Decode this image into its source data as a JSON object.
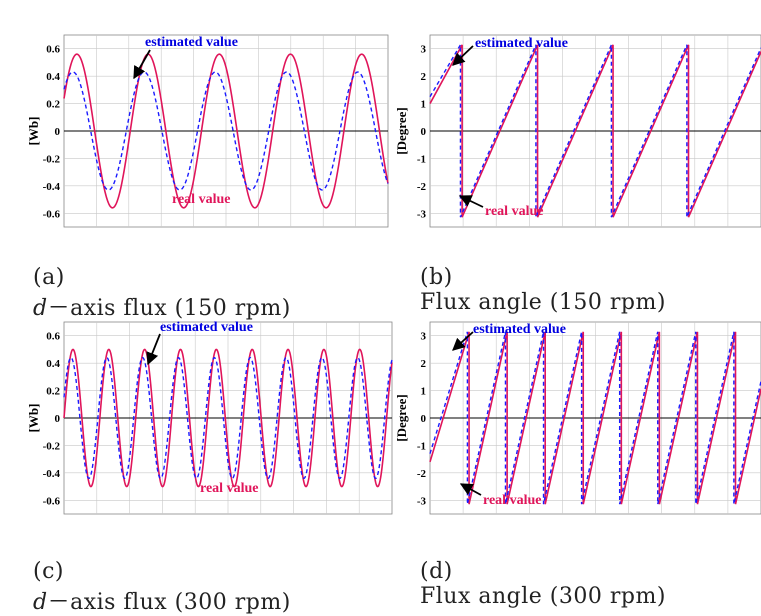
{
  "captions": [
    {
      "label": "(a)",
      "italic": "d",
      "text": "－axis flux (150 rpm)"
    },
    {
      "label": "(b)",
      "italic": "",
      "text": "Flux angle (150 rpm)"
    },
    {
      "label": "(c)",
      "italic": "d",
      "text": "－axis flux (300 rpm)"
    },
    {
      "label": "(d)",
      "italic": "",
      "text": "Flux angle (300 rpm)"
    }
  ],
  "colors": {
    "real": "#e0155a",
    "estimated": "#1a1aff",
    "grid": "#c8c8c8",
    "zero_line": "#000000"
  },
  "chart_data": [
    {
      "type": "line",
      "ylabel": "[Wb]",
      "ylim": [
        -0.7,
        0.7
      ],
      "yticks": [
        "0.6",
        "0.4",
        "0.2",
        "0",
        "-0.2",
        "-0.4",
        "-0.6"
      ],
      "ytick_values": [
        0.6,
        0.4,
        0.2,
        0,
        -0.2,
        -0.4,
        -0.6
      ],
      "xlim": [
        0,
        1
      ],
      "grid": true,
      "series": [
        {
          "style": "solid",
          "amplitude": 0.56,
          "cycles": 4.55,
          "phase_deg": 25,
          "waveform": "sine"
        },
        {
          "style": "dashed",
          "amplitude": 0.43,
          "cycles": 4.55,
          "phase_deg": 45,
          "waveform": "sine"
        }
      ],
      "annotations": {
        "estimated": "estimated value",
        "real": "real value"
      }
    },
    {
      "type": "line",
      "ylabel": "[Degree]",
      "ylim": [
        -3.5,
        3.5
      ],
      "yticks": [
        "3",
        "2",
        "1",
        "0",
        "-1",
        "-2",
        "-3"
      ],
      "ytick_values": [
        3,
        2,
        1,
        0,
        -1,
        -2,
        -3
      ],
      "xlim": [
        0,
        1
      ],
      "grid": true,
      "series": [
        {
          "style": "solid",
          "start": 1.0,
          "period": 0.228,
          "first_wrap": 0.097,
          "waveform": "sawtooth"
        },
        {
          "style": "dashed",
          "start": 1.25,
          "period": 0.228,
          "first_wrap": 0.092,
          "waveform": "sawtooth"
        }
      ],
      "annotations": {
        "estimated": "estimated value",
        "real": "real value"
      }
    },
    {
      "type": "line",
      "ylabel": "[Wb]",
      "ylim": [
        -0.7,
        0.7
      ],
      "yticks": [
        "0.6",
        "0.4",
        "0.2",
        "0",
        "-0.2",
        "-0.4",
        "-0.6"
      ],
      "ytick_values": [
        0.6,
        0.4,
        0.2,
        0,
        -0.2,
        -0.4,
        -0.6
      ],
      "xlim": [
        0,
        1
      ],
      "grid": true,
      "series": [
        {
          "style": "solid",
          "amplitude": 0.5,
          "cycles": 9.15,
          "phase_deg": 0,
          "waveform": "sine"
        },
        {
          "style": "dashed",
          "amplitude": 0.44,
          "cycles": 9.15,
          "phase_deg": 20,
          "waveform": "sine"
        }
      ],
      "annotations": {
        "estimated": "estimated value",
        "real": "real value"
      }
    },
    {
      "type": "line",
      "ylabel": "[Degree]",
      "ylim": [
        -3.5,
        3.5
      ],
      "yticks": [
        "3",
        "2",
        "1",
        "0",
        "-1",
        "-2",
        "-3"
      ],
      "ytick_values": [
        3,
        2,
        1,
        0,
        -1,
        -2,
        -3
      ],
      "xlim": [
        0,
        1
      ],
      "grid": true,
      "series": [
        {
          "style": "solid",
          "start": -1.6,
          "period": 0.115,
          "first_wrap": 0.118,
          "waveform": "sawtooth"
        },
        {
          "style": "dashed",
          "start": -1.3,
          "period": 0.115,
          "first_wrap": 0.113,
          "waveform": "sawtooth"
        }
      ],
      "annotations": {
        "estimated": "estimated value",
        "real": "real value"
      }
    }
  ]
}
